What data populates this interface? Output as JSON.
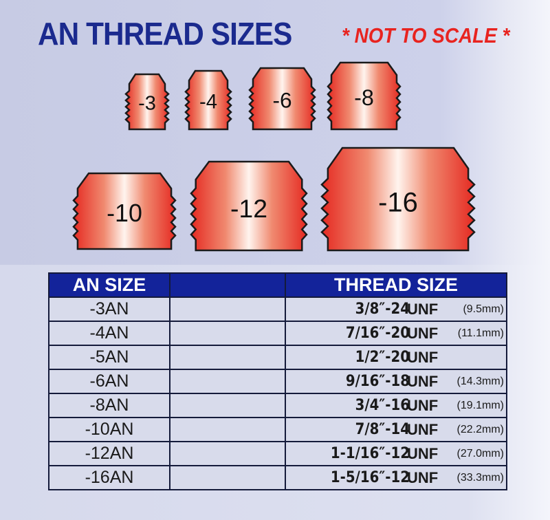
{
  "title": "AN THREAD SIZES",
  "note": "* NOT TO SCALE *",
  "colors": {
    "title": "#1b2a8e",
    "note": "#e8231f",
    "fitting": "#e8332b",
    "header_bg": "#13239a"
  },
  "fittings": [
    "-3",
    "-4",
    "-6",
    "-8",
    "-10",
    "-12",
    "-16"
  ],
  "table": {
    "headers": [
      "AN SIZE",
      "",
      "THREAD SIZE"
    ],
    "rows": [
      {
        "an": "-3AN",
        "thread": "3/8″-24",
        "unf": "UNF",
        "mm": "(9.5mm)"
      },
      {
        "an": "-4AN",
        "thread": "7/16″-20",
        "unf": "UNF",
        "mm": "(11.1mm)"
      },
      {
        "an": "-5AN",
        "thread": "1/2″-20",
        "unf": "UNF",
        "mm": ""
      },
      {
        "an": "-6AN",
        "thread": "9/16″-18",
        "unf": "UNF",
        "mm": "(14.3mm)"
      },
      {
        "an": "-8AN",
        "thread": "3/4″-16",
        "unf": "UNF",
        "mm": "(19.1mm)"
      },
      {
        "an": "-10AN",
        "thread": "7/8″-14",
        "unf": "UNF",
        "mm": "(22.2mm)"
      },
      {
        "an": "-12AN",
        "thread": "1-1/16″-12",
        "unf": "UNF",
        "mm": "(27.0mm)"
      },
      {
        "an": "-16AN",
        "thread": "1-5/16″-12",
        "unf": "UNF",
        "mm": "(33.3mm)"
      }
    ]
  }
}
